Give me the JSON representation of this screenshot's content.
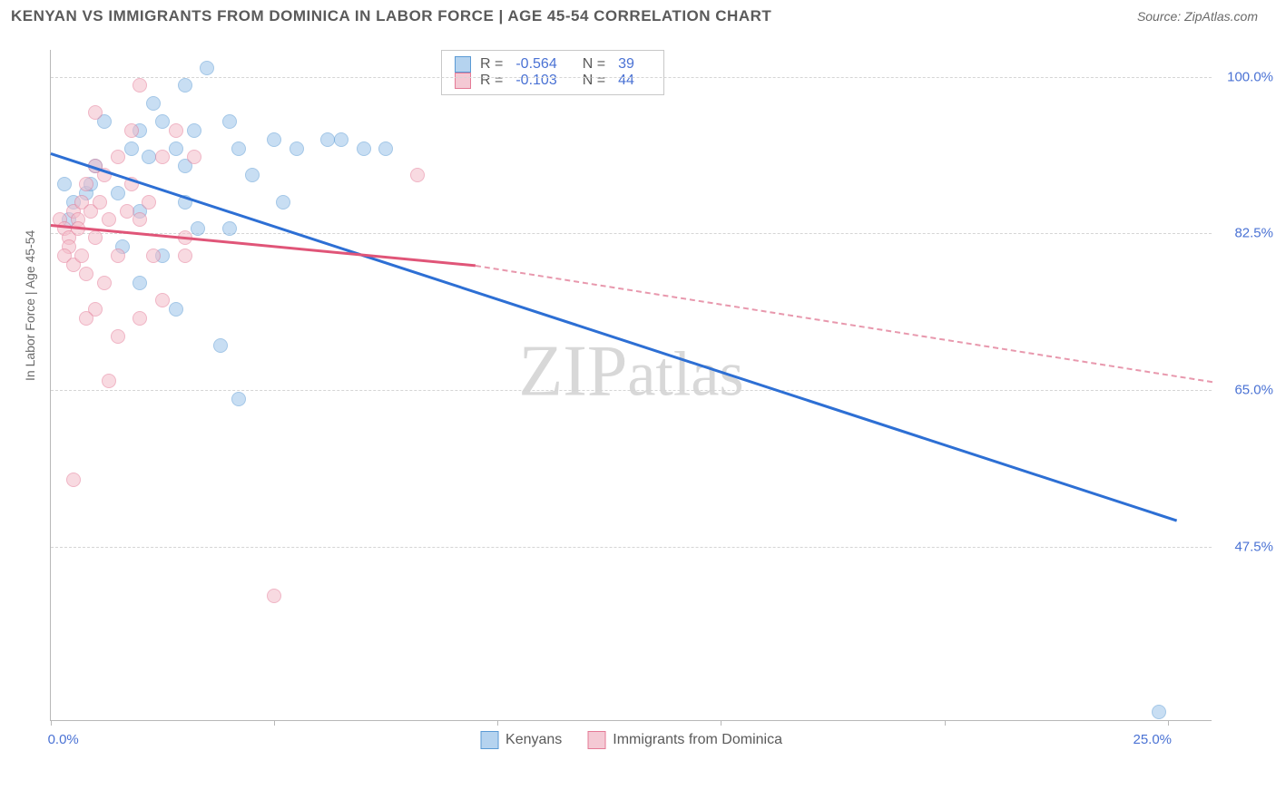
{
  "title": "KENYAN VS IMMIGRANTS FROM DOMINICA IN LABOR FORCE | AGE 45-54 CORRELATION CHART",
  "source": "Source: ZipAtlas.com",
  "ylabel": "In Labor Force | Age 45-54",
  "watermark": "ZIPatlas",
  "chart": {
    "type": "scatter",
    "xlim": [
      0,
      26
    ],
    "ylim": [
      28,
      103
    ],
    "xticks": [
      0,
      5,
      10,
      15,
      20,
      25
    ],
    "xtick_labels": [
      "0.0%",
      "",
      "",
      "",
      "",
      "25.0%"
    ],
    "yticks": [
      47.5,
      65.0,
      82.5,
      100.0
    ],
    "ytick_labels": [
      "47.5%",
      "65.0%",
      "82.5%",
      "100.0%"
    ],
    "background": "#ffffff",
    "grid_color": "#d5d5d5",
    "series": [
      {
        "name": "Kenyans",
        "color_fill": "#9cc4eb",
        "color_stroke": "#5a9ad4",
        "trend_color": "#2d6fd4",
        "R": "-0.564",
        "N": "39",
        "trend": {
          "x1": 0,
          "y1": 91.5,
          "x2": 25.2,
          "y2": 50.5
        },
        "points": [
          [
            0.3,
            88
          ],
          [
            0.5,
            86
          ],
          [
            0.8,
            87
          ],
          [
            0.4,
            84
          ],
          [
            1.0,
            90
          ],
          [
            1.2,
            95
          ],
          [
            0.9,
            88
          ],
          [
            1.5,
            87
          ],
          [
            1.8,
            92
          ],
          [
            2.0,
            94
          ],
          [
            2.2,
            91
          ],
          [
            2.0,
            85
          ],
          [
            1.6,
            81
          ],
          [
            2.3,
            97
          ],
          [
            2.5,
            95
          ],
          [
            2.8,
            92
          ],
          [
            3.0,
            90
          ],
          [
            3.2,
            94
          ],
          [
            3.5,
            101
          ],
          [
            3.0,
            86
          ],
          [
            3.3,
            83
          ],
          [
            2.5,
            80
          ],
          [
            2.0,
            77
          ],
          [
            2.8,
            74
          ],
          [
            4.0,
            95
          ],
          [
            4.2,
            92
          ],
          [
            4.5,
            89
          ],
          [
            4.0,
            83
          ],
          [
            5.0,
            93
          ],
          [
            5.5,
            92
          ],
          [
            5.2,
            86
          ],
          [
            3.8,
            70
          ],
          [
            4.2,
            64
          ],
          [
            6.2,
            93
          ],
          [
            6.5,
            93
          ],
          [
            7.0,
            92
          ],
          [
            7.5,
            92
          ],
          [
            24.8,
            29
          ],
          [
            3.0,
            99
          ]
        ]
      },
      {
        "name": "Immigrants from Dominica",
        "color_fill": "#f4bcc9",
        "color_stroke": "#e47a96",
        "trend_color": "#e05578",
        "R": "-0.103",
        "N": "44",
        "trend": {
          "x1": 0,
          "y1": 83.5,
          "x2": 9.5,
          "y2": 79
        },
        "trend_ext": {
          "x1": 9.5,
          "y1": 79,
          "x2": 26,
          "y2": 66
        },
        "points": [
          [
            0.2,
            84
          ],
          [
            0.3,
            83
          ],
          [
            0.4,
            82
          ],
          [
            0.5,
            85
          ],
          [
            0.4,
            81
          ],
          [
            0.3,
            80
          ],
          [
            0.6,
            84
          ],
          [
            0.5,
            79
          ],
          [
            0.7,
            86
          ],
          [
            0.8,
            88
          ],
          [
            0.6,
            83
          ],
          [
            0.9,
            85
          ],
          [
            0.7,
            80
          ],
          [
            1.0,
            90
          ],
          [
            1.2,
            89
          ],
          [
            1.0,
            82
          ],
          [
            0.8,
            78
          ],
          [
            1.1,
            86
          ],
          [
            1.3,
            84
          ],
          [
            1.5,
            80
          ],
          [
            1.2,
            77
          ],
          [
            1.0,
            74
          ],
          [
            1.7,
            85
          ],
          [
            1.8,
            88
          ],
          [
            1.5,
            91
          ],
          [
            2.0,
            84
          ],
          [
            2.2,
            86
          ],
          [
            2.5,
            91
          ],
          [
            2.0,
            99
          ],
          [
            2.3,
            80
          ],
          [
            2.8,
            94
          ],
          [
            2.0,
            73
          ],
          [
            2.5,
            75
          ],
          [
            1.3,
            66
          ],
          [
            0.5,
            55
          ],
          [
            0.8,
            73
          ],
          [
            1.5,
            71
          ],
          [
            3.0,
            82
          ],
          [
            3.2,
            91
          ],
          [
            3.0,
            80
          ],
          [
            8.2,
            89
          ],
          [
            5.0,
            42
          ],
          [
            1.0,
            96
          ],
          [
            1.8,
            94
          ]
        ]
      }
    ],
    "legend": [
      {
        "label": "Kenyans",
        "fill": "#b5d3ef",
        "stroke": "#5a9ad4"
      },
      {
        "label": "Immigrants from Dominica",
        "fill": "#f4c9d4",
        "stroke": "#e47a96"
      }
    ]
  }
}
